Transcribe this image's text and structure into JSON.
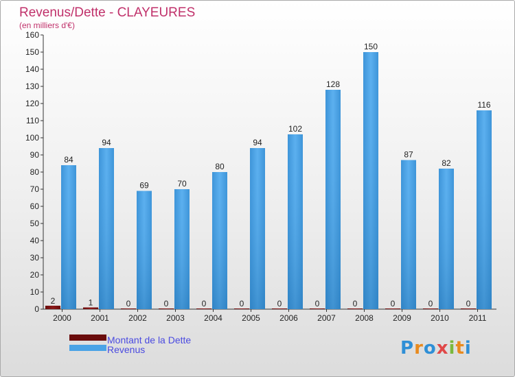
{
  "chart_data": {
    "type": "bar",
    "title": "Revenus/Dette - CLAYEURES",
    "subtitle": "(en milliers d'€)",
    "categories": [
      "2000",
      "2001",
      "2002",
      "2003",
      "2004",
      "2005",
      "2006",
      "2007",
      "2008",
      "2009",
      "2010",
      "2011"
    ],
    "series": [
      {
        "name": "Montant de la Dette",
        "values": [
          2,
          1,
          0,
          0,
          0,
          0,
          0,
          0,
          0,
          0,
          0,
          0
        ],
        "color": "#7a0f0f"
      },
      {
        "name": "Revenus",
        "values": [
          84,
          94,
          69,
          70,
          80,
          94,
          102,
          128,
          150,
          87,
          82,
          116
        ],
        "color": "#4aa3e6"
      }
    ],
    "ylim": [
      0,
      160
    ],
    "ytick_step": 10,
    "grid": false,
    "legend_position": "bottom-left"
  },
  "logo": {
    "text": "Proxiti"
  },
  "colors": {
    "title": "#c0306a",
    "axis": "#333333",
    "label": "#222222",
    "legend_text": "#4a4ae0",
    "debt_dark": "#5a0a0a",
    "revenue_dark": "#2a7ec4"
  }
}
